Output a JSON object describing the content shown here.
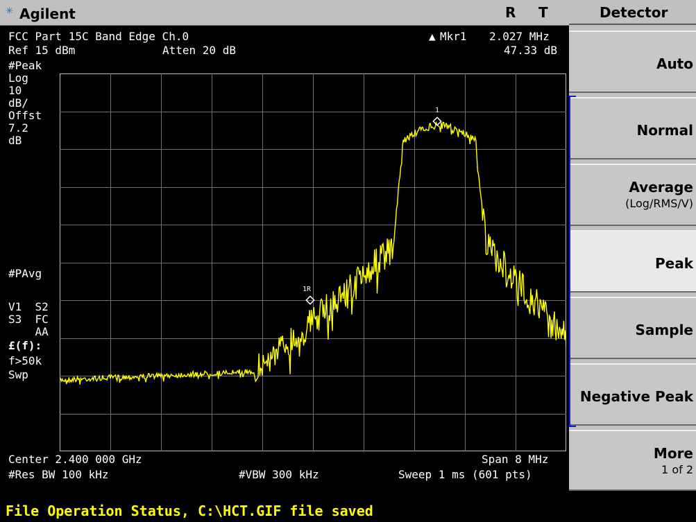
{
  "topbar": {
    "brand": "Agilent",
    "indicator_r": "R",
    "indicator_t": "T"
  },
  "display": {
    "title": "FCC Part 15C Band Edge Ch.0",
    "ref_level": "Ref 15 dBm",
    "atten": "Atten 20 dB",
    "marker_label": "Mkr1",
    "marker_freq": "2.027 MHz",
    "marker_value": "47.33 dB",
    "left_annotations": [
      "#Peak",
      "Log",
      "10",
      "dB/",
      "Offst",
      "7.2",
      "dB"
    ],
    "pavg": "#PAvg",
    "vs_labels": [
      "V1  S2",
      "S3  FC",
      "    AA"
    ],
    "pound_f": "£(f):",
    "f_cond": "f>50k",
    "swp": "Swp",
    "center": "Center 2.400 000 GHz",
    "span": "Span 8 MHz",
    "res_bw": "#Res BW 100 kHz",
    "vbw": "#VBW 300 kHz",
    "sweep": "Sweep 1 ms (601 pts)",
    "marker1_tag": "1",
    "marker1r_tag": "1R"
  },
  "panel": {
    "title": "Detector",
    "softkeys": [
      {
        "label": "Auto",
        "sub": ""
      },
      {
        "label": "Normal",
        "sub": ""
      },
      {
        "label": "Average",
        "sub": "(Log/RMS/V)"
      },
      {
        "label": "Peak",
        "sub": ""
      },
      {
        "label": "Sample",
        "sub": ""
      },
      {
        "label": "Negative Peak",
        "sub": ""
      },
      {
        "label": "More",
        "sub": "1 of 2"
      }
    ]
  },
  "status": {
    "text": "File Operation Status, C:\\HCT.GIF file saved"
  },
  "colors": {
    "trace": "#ffff00",
    "background": "#000000",
    "panel": "#c0c0c0",
    "bracket": "#0a1fd8",
    "status_text": "#ffff00"
  },
  "icons": {
    "brand_logo": "agilent-spark-icon",
    "marker_delta": "delta-triangle-icon",
    "marker": "diamond-marker-icon"
  }
}
